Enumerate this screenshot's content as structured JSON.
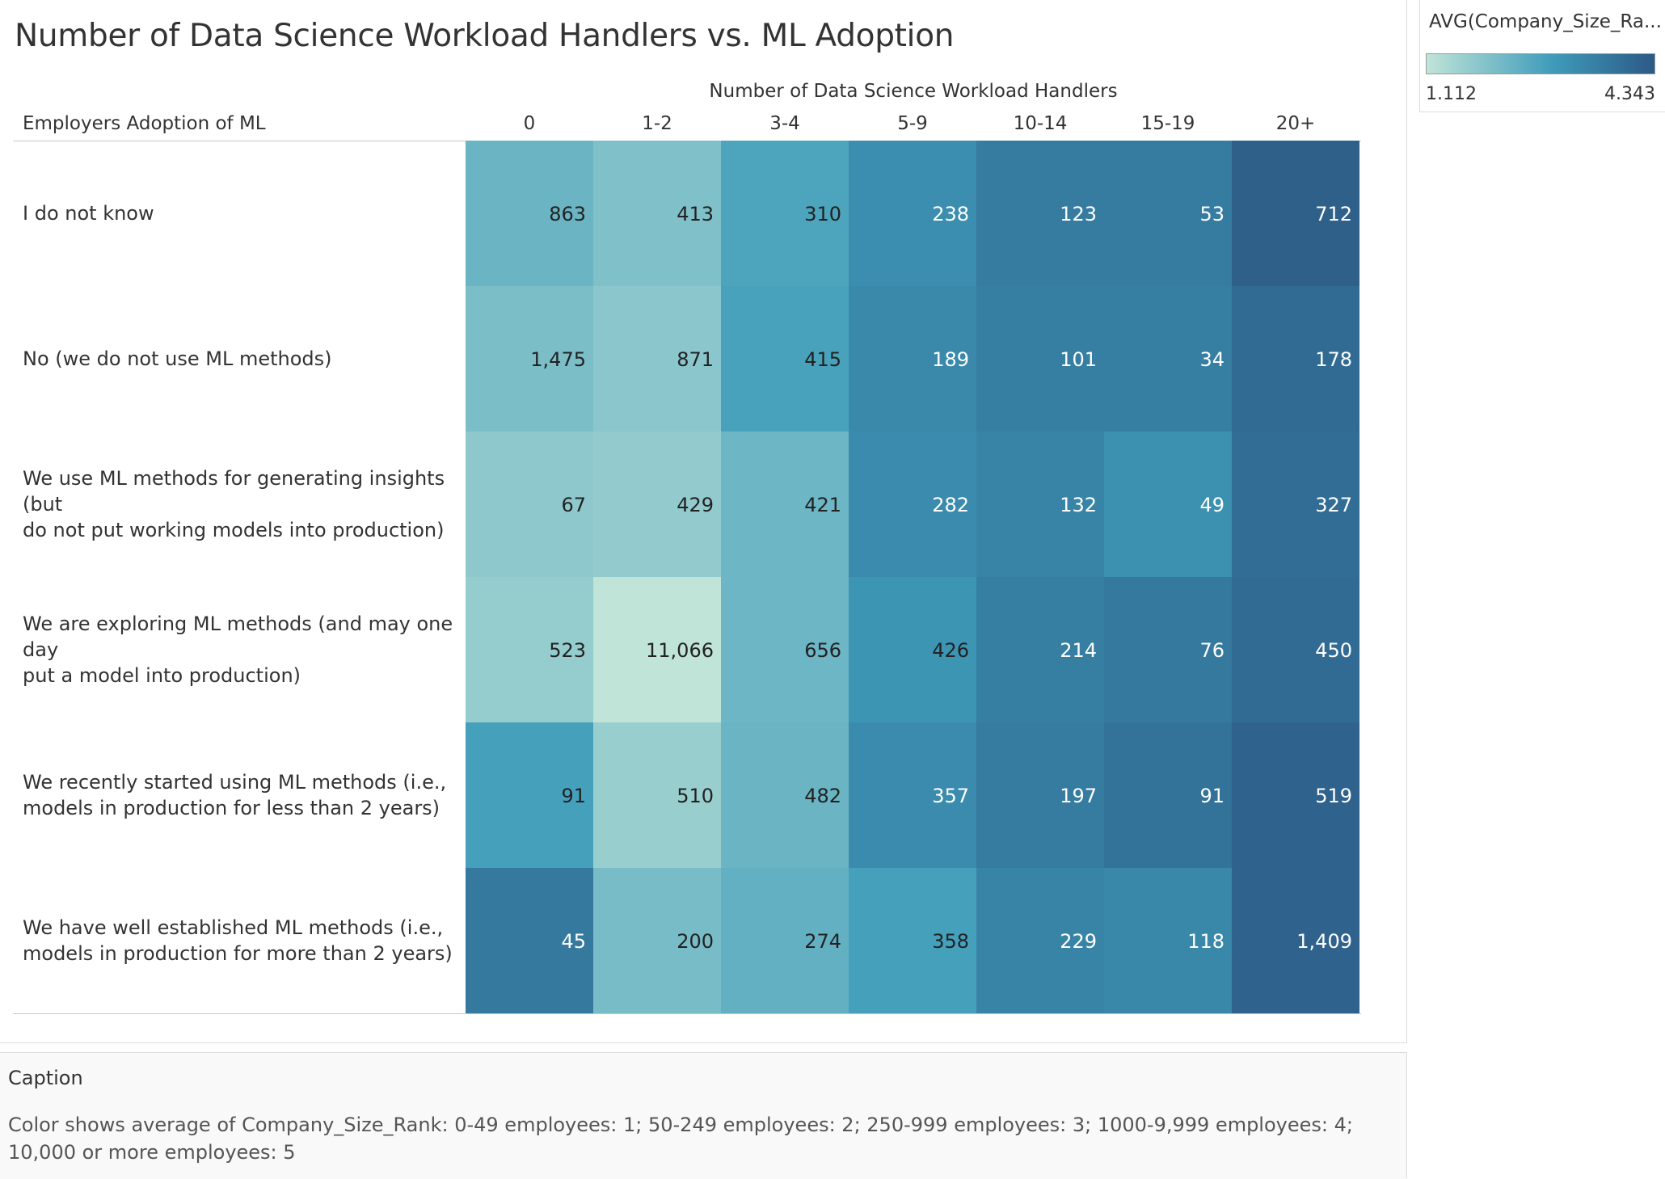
{
  "title": "Number of Data Science Workload Handlers vs. ML Adoption",
  "chart_data": {
    "type": "heatmap",
    "title": "Number of Data Science Workload Handlers vs. ML Adoption",
    "column_axis_label": "Number of Data Science Workload Handlers",
    "row_axis_label": "Employers Adoption of ML",
    "columns": [
      "0",
      "1-2",
      "3-4",
      "5-9",
      "10-14",
      "15-19",
      "20+"
    ],
    "rows": [
      "I do not know",
      "No (we do not use ML methods)",
      "We use ML methods for generating insights (but do not put working models into production)",
      "We are exploring ML methods (and may one day put a model into production)",
      "We recently started using ML methods (i.e., models in production for less than 2 years)",
      "We have well established ML methods (i.e., models in production for more than 2 years)"
    ],
    "row_label_lines": [
      [
        "I do not know"
      ],
      [
        "No (we do not use ML methods)"
      ],
      [
        "We use ML methods for generating insights (but",
        "do not put working models into production)"
      ],
      [
        "We are exploring ML methods (and may one day",
        "put a model into production)"
      ],
      [
        "We recently started using ML methods (i.e.,",
        "models in production for less than 2 years)"
      ],
      [
        "We have well established ML methods (i.e.,",
        "models in production for more than 2 years)"
      ]
    ],
    "counts": [
      [
        863,
        413,
        310,
        238,
        123,
        53,
        712
      ],
      [
        1475,
        871,
        415,
        189,
        101,
        34,
        178
      ],
      [
        67,
        429,
        421,
        282,
        132,
        49,
        327
      ],
      [
        523,
        11066,
        656,
        426,
        214,
        76,
        450
      ],
      [
        91,
        510,
        482,
        357,
        197,
        91,
        519
      ],
      [
        45,
        200,
        274,
        358,
        229,
        118,
        1409
      ]
    ],
    "count_labels": [
      [
        "863",
        "413",
        "310",
        "238",
        "123",
        "53",
        "712"
      ],
      [
        "1,475",
        "871",
        "415",
        "189",
        "101",
        "34",
        "178"
      ],
      [
        "67",
        "429",
        "421",
        "282",
        "132",
        "49",
        "327"
      ],
      [
        "523",
        "11,066",
        "656",
        "426",
        "214",
        "76",
        "450"
      ],
      [
        "91",
        "510",
        "482",
        "357",
        "197",
        "91",
        "519"
      ],
      [
        "45",
        "200",
        "274",
        "358",
        "229",
        "118",
        "1,409"
      ]
    ],
    "color_values": [
      [
        2.3,
        2.0,
        2.7,
        3.2,
        3.6,
        3.6,
        4.2
      ],
      [
        2.05,
        1.85,
        2.75,
        3.3,
        3.55,
        3.55,
        3.95
      ],
      [
        1.8,
        1.75,
        2.25,
        3.25,
        3.4,
        3.15,
        3.9
      ],
      [
        1.7,
        1.112,
        2.25,
        3.05,
        3.55,
        3.65,
        3.95
      ],
      [
        2.8,
        1.65,
        2.3,
        3.25,
        3.6,
        3.8,
        4.15
      ],
      [
        3.65,
        2.1,
        2.4,
        2.8,
        3.4,
        3.35,
        4.15
      ]
    ],
    "color_legend": {
      "title": "AVG(Company_Size_Ra...",
      "min": 1.112,
      "max": 4.343,
      "min_label": "1.112",
      "max_label": "4.343",
      "low_color": "#c0e4d8",
      "mid_color": "#3f9cba",
      "high_color": "#2c5985"
    },
    "legend_placement": "top-right"
  },
  "caption": {
    "heading": "Caption",
    "text": "Color shows average of Company_Size_Rank: 0-49 employees: 1; 50-249 employees: 2; 250-999 employees: 3; 1000-9,999 employees: 4; 10,000 or more employees: 5"
  }
}
